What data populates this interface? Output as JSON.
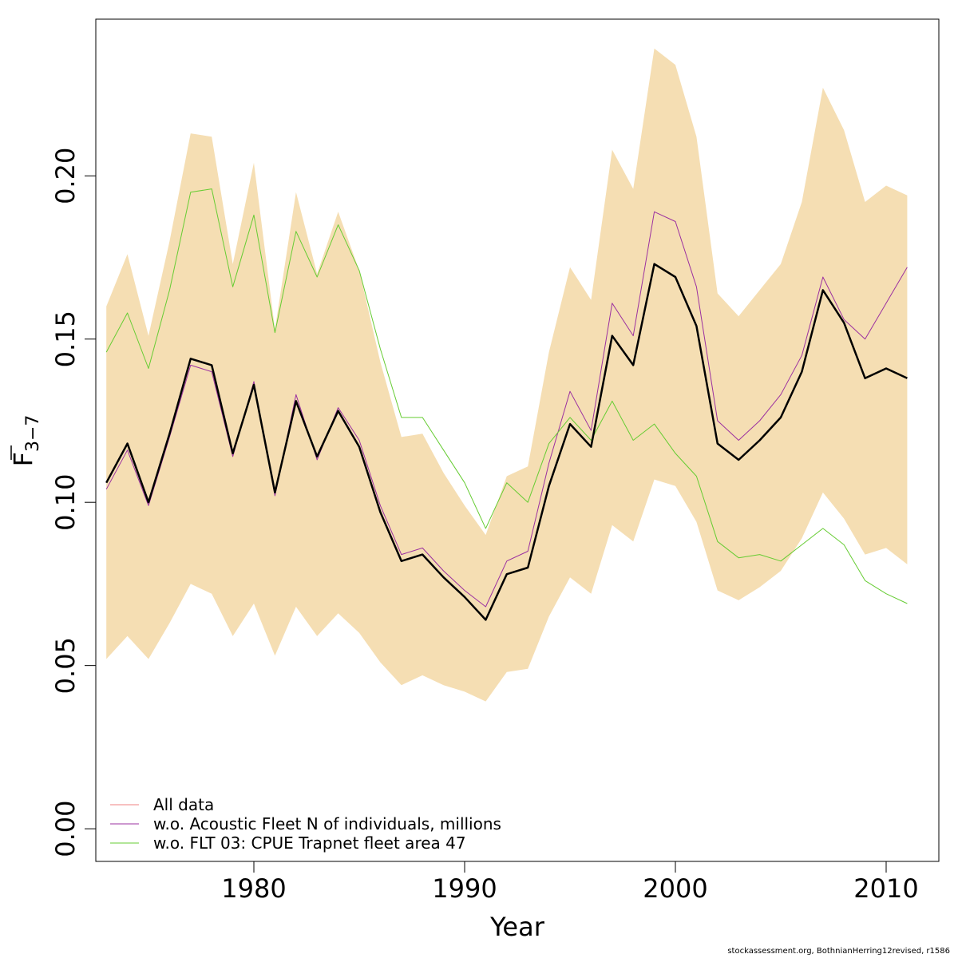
{
  "chart_data": {
    "type": "line",
    "xlabel": "Year",
    "ylabel": {
      "base": "F",
      "subscript": "3−7",
      "overline": true
    },
    "xlim": [
      1972.5,
      2012.5
    ],
    "ylim": [
      -0.01,
      0.248
    ],
    "x_ticks": [
      1980,
      1990,
      2000,
      2010
    ],
    "y_ticks": [
      0.0,
      0.05,
      0.1,
      0.15,
      0.2
    ],
    "y_tick_labels": [
      "0.00",
      "0.05",
      "0.10",
      "0.15",
      "0.20"
    ],
    "legend_position": "bottom-left",
    "confidence_band": {
      "color": "#f5deb3",
      "x": [
        1973,
        1974,
        1975,
        1976,
        1977,
        1978,
        1979,
        1980,
        1981,
        1982,
        1983,
        1984,
        1985,
        1986,
        1987,
        1988,
        1989,
        1990,
        1991,
        1992,
        1993,
        1994,
        1995,
        1996,
        1997,
        1998,
        1999,
        2000,
        2001,
        2002,
        2003,
        2004,
        2005,
        2006,
        2007,
        2008,
        2009,
        2010,
        2011
      ],
      "lower": [
        0.052,
        0.059,
        0.052,
        0.063,
        0.075,
        0.072,
        0.059,
        0.069,
        0.053,
        0.068,
        0.059,
        0.066,
        0.06,
        0.051,
        0.044,
        0.047,
        0.044,
        0.042,
        0.039,
        0.048,
        0.049,
        0.065,
        0.077,
        0.072,
        0.093,
        0.088,
        0.107,
        0.105,
        0.094,
        0.073,
        0.07,
        0.074,
        0.079,
        0.089,
        0.103,
        0.095,
        0.084,
        0.086,
        0.081
      ],
      "upper": [
        0.16,
        0.176,
        0.151,
        0.18,
        0.213,
        0.212,
        0.173,
        0.204,
        0.153,
        0.195,
        0.17,
        0.189,
        0.171,
        0.143,
        0.12,
        0.121,
        0.109,
        0.099,
        0.09,
        0.108,
        0.111,
        0.146,
        0.172,
        0.162,
        0.208,
        0.196,
        0.239,
        0.234,
        0.212,
        0.164,
        0.157,
        0.165,
        0.173,
        0.192,
        0.227,
        0.214,
        0.192,
        0.197,
        0.194
      ]
    },
    "series": [
      {
        "name": "All data",
        "color": "#000000",
        "legend_color": "#f08080",
        "width": 2.5,
        "values": [
          0.106,
          0.118,
          0.1,
          0.121,
          0.144,
          0.142,
          0.115,
          0.136,
          0.103,
          0.131,
          0.114,
          0.128,
          0.117,
          0.097,
          0.082,
          0.084,
          0.077,
          0.071,
          0.064,
          0.078,
          0.08,
          0.105,
          0.124,
          0.117,
          0.151,
          0.142,
          0.173,
          0.169,
          0.154,
          0.118,
          0.113,
          0.119,
          0.126,
          0.14,
          0.165,
          0.155,
          0.138,
          0.141,
          0.138
        ]
      },
      {
        "name": "w.o. Acoustic Fleet  N of individuals, millions",
        "color": "#9b30a0",
        "legend_color": "#9b30a0",
        "width": 1,
        "values": [
          0.104,
          0.116,
          0.099,
          0.12,
          0.142,
          0.14,
          0.114,
          0.137,
          0.102,
          0.133,
          0.113,
          0.129,
          0.119,
          0.099,
          0.084,
          0.086,
          0.079,
          0.073,
          0.068,
          0.082,
          0.085,
          0.112,
          0.134,
          0.122,
          0.161,
          0.151,
          0.189,
          0.186,
          0.166,
          0.125,
          0.119,
          0.125,
          0.133,
          0.145,
          0.169,
          0.156,
          0.15,
          0.161,
          0.172
        ]
      },
      {
        "name": "w.o. FLT 03: CPUE Trapnet fleet area 47",
        "color": "#66cc33",
        "legend_color": "#66cc33",
        "width": 1,
        "values": [
          0.146,
          0.158,
          0.141,
          0.165,
          0.195,
          0.196,
          0.166,
          0.188,
          0.152,
          0.183,
          0.169,
          0.185,
          0.171,
          0.147,
          0.126,
          0.126,
          0.116,
          0.106,
          0.092,
          0.106,
          0.1,
          0.118,
          0.126,
          0.119,
          0.131,
          0.119,
          0.124,
          0.115,
          0.108,
          0.088,
          0.083,
          0.084,
          0.082,
          0.087,
          0.092,
          0.087,
          0.076,
          0.072,
          0.069
        ]
      }
    ]
  },
  "footer": {
    "text": "stockassessment.org, BothnianHerring12revised, r1586"
  }
}
